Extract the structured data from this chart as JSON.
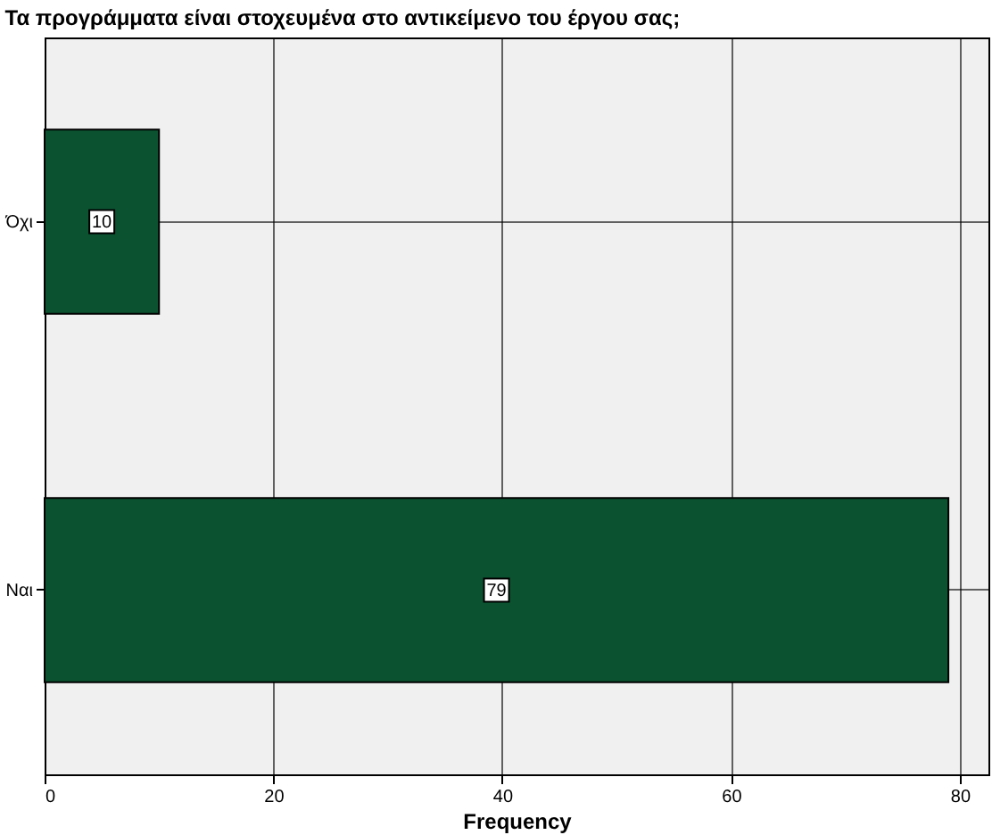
{
  "chart_data": {
    "type": "bar",
    "orientation": "horizontal",
    "title": "Τα προγράμματα είναι στοχευμένα στο αντικείμενο του έργου σας;",
    "xlabel": "Frequency",
    "categories": [
      "Όχι",
      "Ναι"
    ],
    "values": [
      10,
      79
    ],
    "color": "#0b5230",
    "xlim": [
      0,
      82.5
    ],
    "xticks": [
      0,
      20,
      40,
      60,
      80
    ],
    "grid": true,
    "data_labels": true
  }
}
